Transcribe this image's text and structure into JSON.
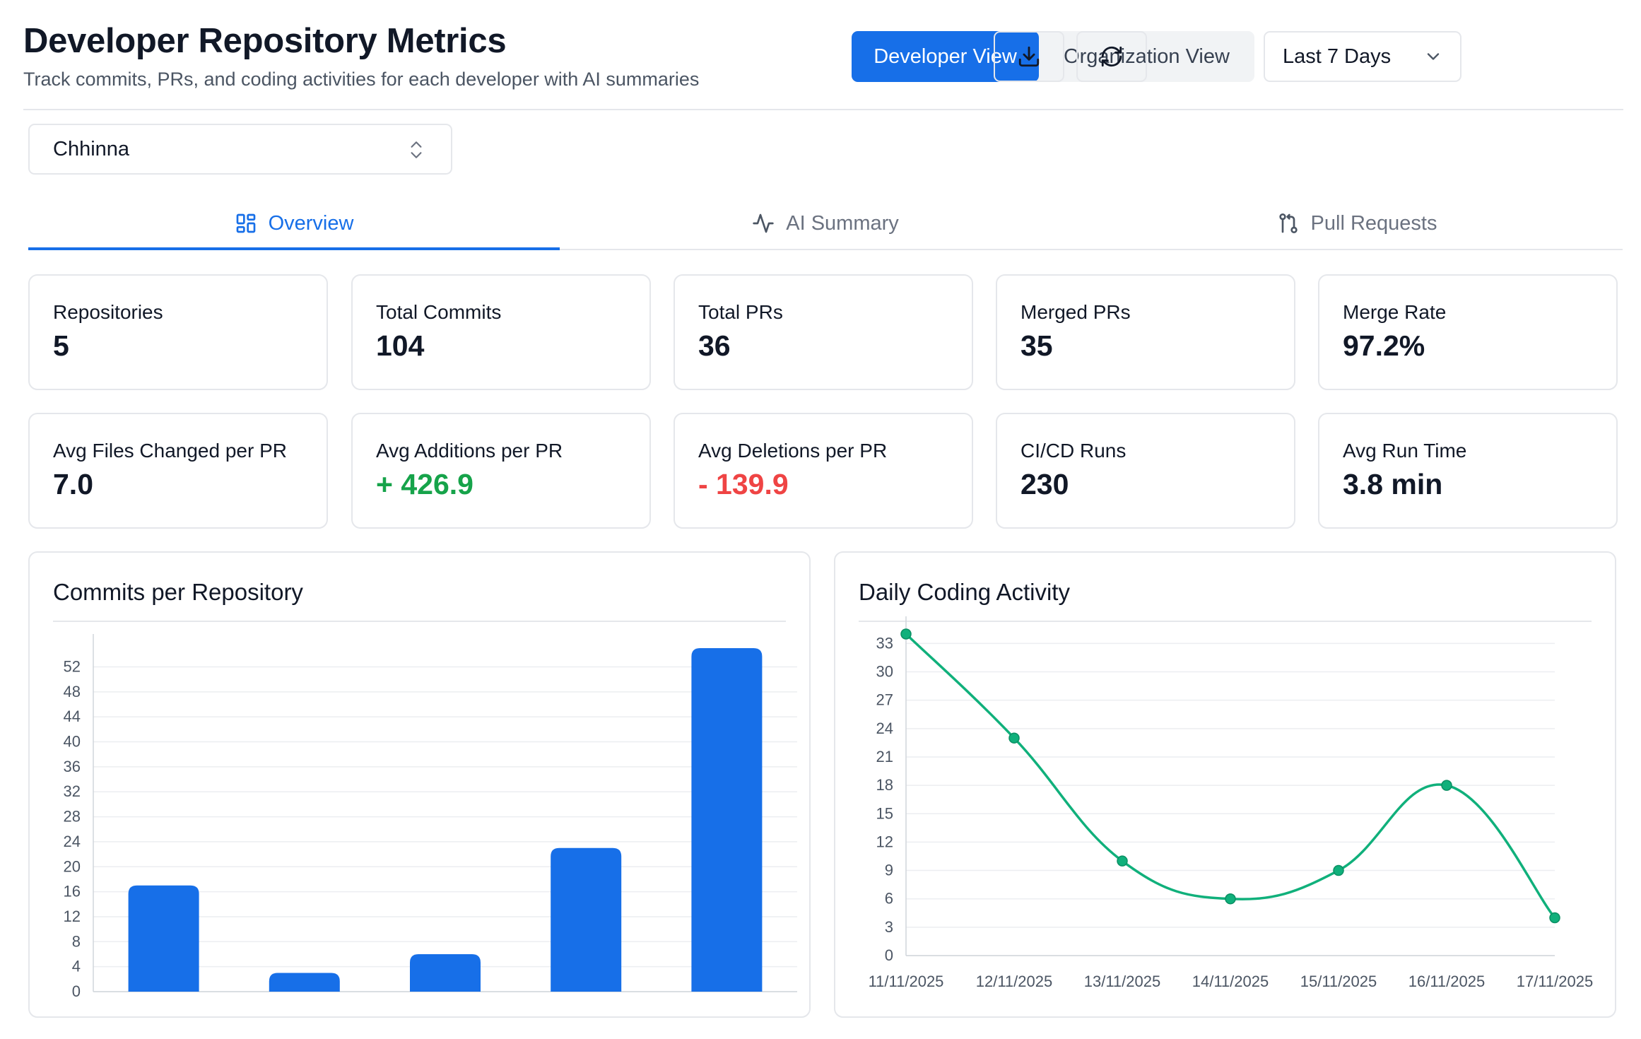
{
  "header": {
    "title": "Developer Repository Metrics",
    "subtitle": "Track commits, PRs, and coding activities for each developer with AI summaries",
    "view_toggle": {
      "developer_label": "Developer View",
      "organization_label": "Organization View",
      "active": "developer"
    },
    "date_range": {
      "selected": "Last 7 Days"
    },
    "download_icon": "download-icon",
    "refresh_icon": "refresh-icon"
  },
  "developer_select": {
    "selected": "Chhinna"
  },
  "tabs": [
    {
      "label": "Overview",
      "icon": "overview-grid-icon",
      "active": true
    },
    {
      "label": "AI Summary",
      "icon": "activity-icon",
      "active": false
    },
    {
      "label": "Pull Requests",
      "icon": "pull-request-icon",
      "active": false
    }
  ],
  "stats": [
    {
      "label": "Repositories",
      "value": "5"
    },
    {
      "label": "Total Commits",
      "value": "104"
    },
    {
      "label": "Total PRs",
      "value": "36"
    },
    {
      "label": "Merged PRs",
      "value": "35"
    },
    {
      "label": "Merge Rate",
      "value": "97.2%"
    },
    {
      "label": "Avg Files Changed per PR",
      "value": "7.0"
    },
    {
      "label": "Avg Additions per PR",
      "value": "+ 426.9"
    },
    {
      "label": "Avg Deletions per PR",
      "value": "- 139.9"
    },
    {
      "label": "CI/CD Runs",
      "value": "230"
    },
    {
      "label": "Avg Run Time",
      "value": "3.8 min"
    }
  ],
  "colors": {
    "primary": "#176fe8",
    "positive": "#16a34a",
    "negative": "#ef4444",
    "line": "#10b07b"
  },
  "chart_data": [
    {
      "type": "bar",
      "title": "Commits per Repository",
      "categories": [
        "",
        "",
        "",
        "",
        ""
      ],
      "values": [
        17,
        3,
        6,
        23,
        55
      ],
      "ylim": [
        0,
        55
      ],
      "yticks": [
        0,
        4,
        8,
        12,
        16,
        20,
        24,
        28,
        32,
        36,
        40,
        44,
        48,
        52
      ],
      "grid": true,
      "color": "#176fe8"
    },
    {
      "type": "line",
      "title": "Daily Coding Activity",
      "x": [
        "11/11/2025",
        "12/11/2025",
        "13/11/2025",
        "14/11/2025",
        "15/11/2025",
        "16/11/2025",
        "17/11/2025"
      ],
      "values": [
        34,
        23,
        10,
        6,
        9,
        18,
        4
      ],
      "ylim": [
        0,
        34
      ],
      "yticks": [
        0,
        3,
        6,
        9,
        12,
        15,
        18,
        21,
        24,
        27,
        30,
        33
      ],
      "grid": true,
      "color": "#10b07b"
    }
  ]
}
